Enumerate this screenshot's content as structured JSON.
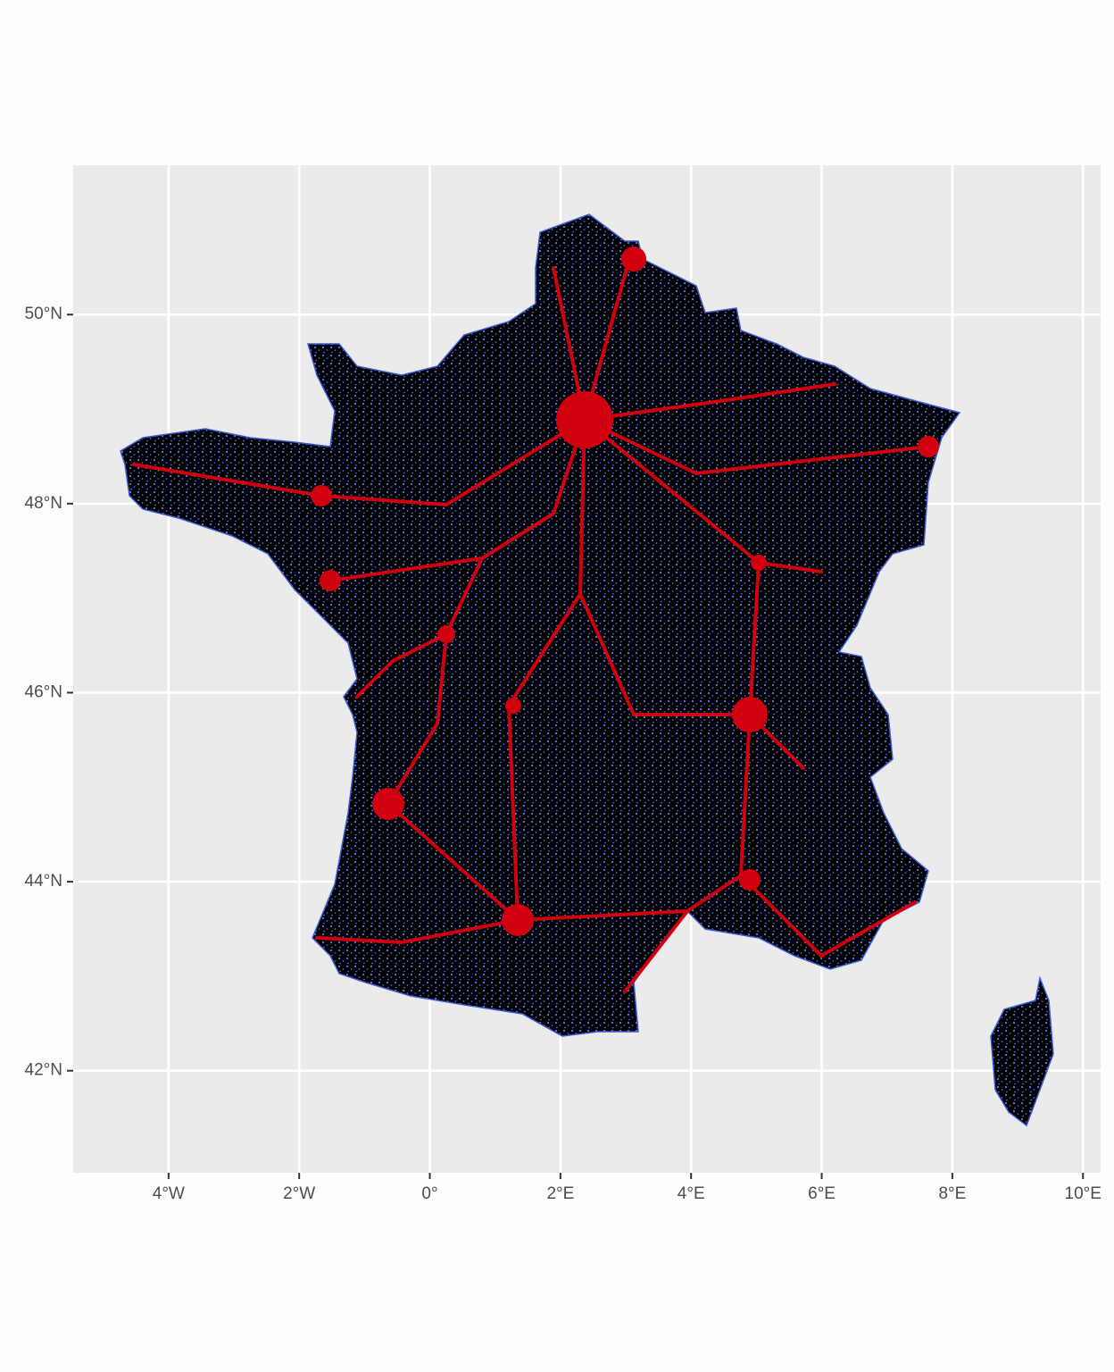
{
  "chart_data": {
    "type": "map",
    "xlim": [
      -5.46,
      10.27
    ],
    "ylim": [
      40.92,
      51.58
    ],
    "xticks": [
      {
        "value": -4,
        "label": "4°W"
      },
      {
        "value": -2,
        "label": "2°W"
      },
      {
        "value": 0,
        "label": "0°"
      },
      {
        "value": 2,
        "label": "2°E"
      },
      {
        "value": 4,
        "label": "4°E"
      },
      {
        "value": 6,
        "label": "6°E"
      },
      {
        "value": 8,
        "label": "8°E"
      },
      {
        "value": 10,
        "label": "10°E"
      }
    ],
    "yticks": [
      {
        "value": 42,
        "label": "42°N"
      },
      {
        "value": 44,
        "label": "44°N"
      },
      {
        "value": 46,
        "label": "46°N"
      },
      {
        "value": 48,
        "label": "48°N"
      },
      {
        "value": 50,
        "label": "50°N"
      }
    ],
    "grid": true
  }
}
